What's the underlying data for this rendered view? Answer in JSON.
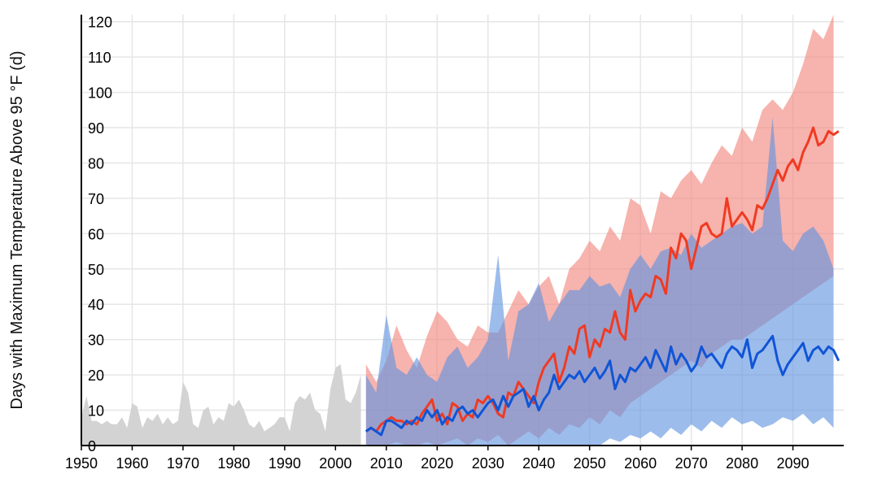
{
  "colors": {
    "background": "#ffffff",
    "grid": "#e6e6e6",
    "axis": "#000000",
    "historical": "#d3d3d3",
    "high_band": "#f2857a",
    "high_line": "#f03a22",
    "low_band": "#5f93e1",
    "low_line": "#1055d6"
  },
  "chart_data": {
    "type": "area",
    "xlabel": "",
    "ylabel": "Days with Maximum Temperature Above 95 °F (d)",
    "xlim": [
      1950,
      2100
    ],
    "ylim": [
      0,
      122
    ],
    "x_ticks": [
      1950,
      1960,
      1970,
      1980,
      1990,
      2000,
      2010,
      2020,
      2030,
      2040,
      2050,
      2060,
      2070,
      2080,
      2090
    ],
    "y_ticks": [
      0,
      10,
      20,
      30,
      40,
      50,
      60,
      70,
      80,
      90,
      100,
      110,
      120
    ],
    "grid": true,
    "legend": "none",
    "series": [
      {
        "id": "historical",
        "kind": "area",
        "x": [
          1950,
          1951,
          1952,
          1953,
          1954,
          1955,
          1956,
          1957,
          1958,
          1959,
          1960,
          1961,
          1962,
          1963,
          1964,
          1965,
          1966,
          1967,
          1968,
          1969,
          1970,
          1971,
          1972,
          1973,
          1974,
          1975,
          1976,
          1977,
          1978,
          1979,
          1980,
          1981,
          1982,
          1983,
          1984,
          1985,
          1986,
          1987,
          1988,
          1989,
          1990,
          1991,
          1992,
          1993,
          1994,
          1995,
          1996,
          1997,
          1998,
          1999,
          2000,
          2001,
          2002,
          2003,
          2004,
          2005
        ],
        "values": [
          8,
          14,
          7,
          7,
          6,
          7,
          6,
          6,
          8,
          5,
          12,
          11,
          5,
          8,
          7,
          9,
          6,
          8,
          6,
          7,
          18,
          15,
          6,
          5,
          10,
          11,
          6,
          8,
          7,
          12,
          11,
          13,
          10,
          6,
          5,
          7,
          4,
          5,
          6,
          8,
          8,
          4,
          12,
          14,
          13,
          15,
          10,
          9,
          4,
          16,
          22,
          23,
          13,
          12,
          15,
          20
        ]
      },
      {
        "id": "high_emissions_range",
        "kind": "band",
        "x": [
          2006,
          2008,
          2010,
          2012,
          2014,
          2016,
          2018,
          2020,
          2022,
          2024,
          2026,
          2028,
          2030,
          2032,
          2034,
          2036,
          2038,
          2040,
          2042,
          2044,
          2046,
          2048,
          2050,
          2052,
          2054,
          2056,
          2058,
          2060,
          2062,
          2064,
          2066,
          2068,
          2070,
          2072,
          2074,
          2076,
          2078,
          2080,
          2082,
          2084,
          2086,
          2088,
          2090,
          2092,
          2094,
          2096,
          2098
        ],
        "upper": [
          23,
          18,
          24,
          34,
          27,
          22,
          31,
          38,
          35,
          30,
          28,
          34,
          32,
          32,
          38,
          44,
          40,
          45,
          48,
          40,
          50,
          53,
          58,
          55,
          62,
          58,
          70,
          68,
          60,
          72,
          70,
          75,
          78,
          74,
          80,
          85,
          82,
          90,
          86,
          95,
          98,
          95,
          100,
          108,
          118,
          115,
          122
        ],
        "lower": [
          0,
          0,
          0,
          1,
          0,
          0,
          1,
          0,
          1,
          2,
          0,
          2,
          1,
          3,
          0,
          2,
          4,
          2,
          5,
          3,
          6,
          5,
          8,
          6,
          10,
          8,
          12,
          14,
          16,
          18,
          20,
          22,
          24,
          22,
          26,
          28,
          30,
          30,
          32,
          34,
          36,
          38,
          40,
          42,
          44,
          46,
          48
        ]
      },
      {
        "id": "low_emissions_range",
        "kind": "band",
        "x": [
          2006,
          2008,
          2010,
          2012,
          2014,
          2016,
          2018,
          2020,
          2022,
          2024,
          2026,
          2028,
          2030,
          2032,
          2034,
          2036,
          2038,
          2040,
          2042,
          2044,
          2046,
          2048,
          2050,
          2052,
          2054,
          2056,
          2058,
          2060,
          2062,
          2064,
          2066,
          2068,
          2070,
          2072,
          2074,
          2076,
          2078,
          2080,
          2082,
          2084,
          2086,
          2088,
          2090,
          2092,
          2094,
          2096,
          2098
        ],
        "upper": [
          20,
          15,
          37,
          22,
          20,
          25,
          20,
          18,
          25,
          28,
          22,
          25,
          30,
          54,
          24,
          38,
          40,
          46,
          35,
          40,
          44,
          44,
          48,
          45,
          46,
          42,
          50,
          54,
          50,
          55,
          56,
          54,
          60,
          56,
          58,
          60,
          62,
          63,
          60,
          62,
          93,
          58,
          55,
          60,
          62,
          58,
          50
        ],
        "lower": [
          0,
          0,
          0,
          0,
          0,
          0,
          0,
          0,
          0,
          0,
          0,
          0,
          0,
          0,
          0,
          0,
          0,
          0,
          0,
          0,
          0,
          0,
          0,
          0,
          2,
          1,
          3,
          2,
          4,
          2,
          5,
          3,
          6,
          4,
          7,
          5,
          8,
          6,
          7,
          5,
          6,
          8,
          7,
          9,
          6,
          8,
          5
        ]
      },
      {
        "id": "high_emissions_median",
        "kind": "line",
        "x": [
          2006,
          2007,
          2008,
          2009,
          2010,
          2011,
          2012,
          2013,
          2014,
          2015,
          2016,
          2017,
          2018,
          2019,
          2020,
          2021,
          2022,
          2023,
          2024,
          2025,
          2026,
          2027,
          2028,
          2029,
          2030,
          2031,
          2032,
          2033,
          2034,
          2035,
          2036,
          2037,
          2038,
          2039,
          2040,
          2041,
          2042,
          2043,
          2044,
          2045,
          2046,
          2047,
          2048,
          2049,
          2050,
          2051,
          2052,
          2053,
          2054,
          2055,
          2056,
          2057,
          2058,
          2059,
          2060,
          2061,
          2062,
          2063,
          2064,
          2065,
          2066,
          2067,
          2068,
          2069,
          2070,
          2071,
          2072,
          2073,
          2074,
          2075,
          2076,
          2077,
          2078,
          2079,
          2080,
          2081,
          2082,
          2083,
          2084,
          2085,
          2086,
          2087,
          2088,
          2089,
          2090,
          2091,
          2092,
          2093,
          2094,
          2095,
          2096,
          2097,
          2098,
          2099
        ],
        "values": [
          4,
          5,
          4,
          6,
          7,
          8,
          7,
          7,
          6,
          7,
          6,
          9,
          11,
          13,
          7,
          9,
          6,
          12,
          11,
          7,
          9,
          8,
          13,
          12,
          14,
          12,
          9,
          8,
          15,
          14,
          18,
          16,
          14,
          12,
          18,
          22,
          24,
          26,
          18,
          22,
          28,
          26,
          33,
          34,
          25,
          30,
          28,
          33,
          32,
          38,
          32,
          30,
          44,
          38,
          41,
          43,
          42,
          48,
          47,
          43,
          56,
          53,
          60,
          58,
          50,
          56,
          62,
          63,
          60,
          59,
          60,
          70,
          62,
          64,
          66,
          64,
          61,
          68,
          67,
          70,
          74,
          78,
          75,
          79,
          81,
          78,
          83,
          86,
          90,
          85,
          86,
          89,
          88,
          89
        ]
      },
      {
        "id": "low_emissions_median",
        "kind": "line",
        "x": [
          2006,
          2007,
          2008,
          2009,
          2010,
          2011,
          2012,
          2013,
          2014,
          2015,
          2016,
          2017,
          2018,
          2019,
          2020,
          2021,
          2022,
          2023,
          2024,
          2025,
          2026,
          2027,
          2028,
          2029,
          2030,
          2031,
          2032,
          2033,
          2034,
          2035,
          2036,
          2037,
          2038,
          2039,
          2040,
          2041,
          2042,
          2043,
          2044,
          2045,
          2046,
          2047,
          2048,
          2049,
          2050,
          2051,
          2052,
          2053,
          2054,
          2055,
          2056,
          2057,
          2058,
          2059,
          2060,
          2061,
          2062,
          2063,
          2064,
          2065,
          2066,
          2067,
          2068,
          2069,
          2070,
          2071,
          2072,
          2073,
          2074,
          2075,
          2076,
          2077,
          2078,
          2079,
          2080,
          2081,
          2082,
          2083,
          2084,
          2085,
          2086,
          2087,
          2088,
          2089,
          2090,
          2091,
          2092,
          2093,
          2094,
          2095,
          2096,
          2097,
          2098,
          2099
        ],
        "values": [
          4,
          5,
          4,
          3,
          7,
          7,
          6,
          5,
          7,
          6,
          8,
          7,
          10,
          8,
          10,
          6,
          8,
          7,
          10,
          11,
          9,
          10,
          8,
          10,
          12,
          13,
          10,
          14,
          11,
          14,
          15,
          16,
          11,
          14,
          10,
          13,
          15,
          20,
          16,
          18,
          20,
          19,
          21,
          18,
          20,
          22,
          19,
          21,
          24,
          16,
          20,
          18,
          22,
          21,
          23,
          25,
          22,
          27,
          24,
          21,
          28,
          23,
          26,
          24,
          21,
          23,
          28,
          25,
          26,
          24,
          22,
          26,
          28,
          27,
          25,
          30,
          22,
          26,
          27,
          29,
          31,
          24,
          20,
          23,
          25,
          27,
          29,
          24,
          27,
          28,
          26,
          28,
          27,
          24
        ]
      }
    ]
  }
}
